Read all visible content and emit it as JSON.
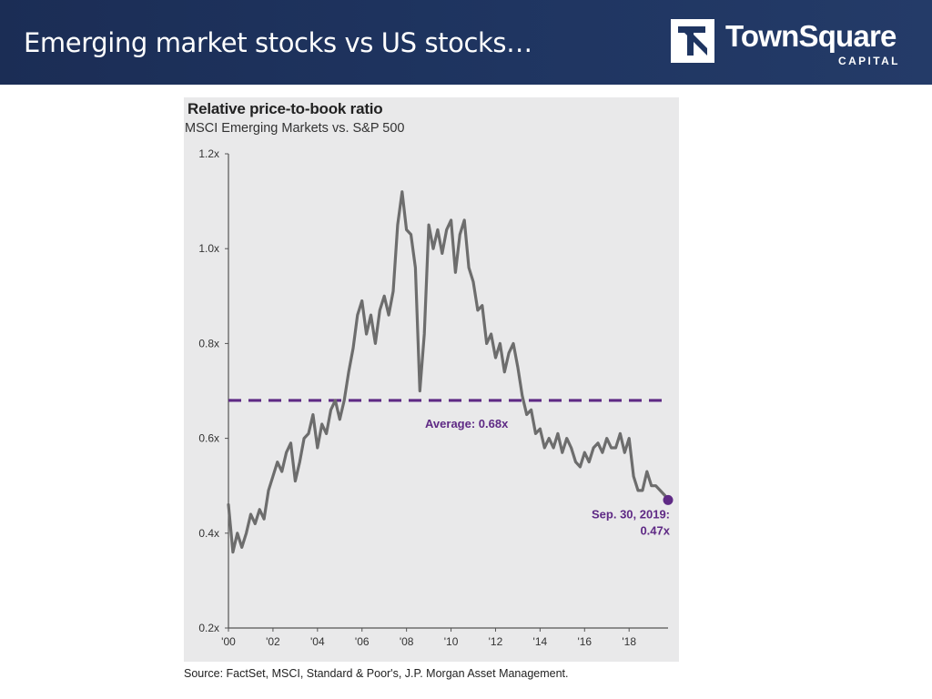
{
  "slide": {
    "title": "Emerging market stocks vs US stocks…",
    "logo_name": "TownSquare",
    "logo_sub": "CAPITAL"
  },
  "colors": {
    "header": "#1f3561",
    "panel_bg": "#e9e9ea",
    "line": "#6d6d6d",
    "accent": "#5f2a85"
  },
  "chart_data": {
    "type": "line",
    "title": "Relative price-to-book ratio",
    "subtitle": "MSCI Emerging Markets vs. S&P 500",
    "xlabel": "",
    "ylabel": "",
    "xlim": [
      2000,
      2019.75
    ],
    "ylim": [
      0.2,
      1.2
    ],
    "x_ticks": [
      2000,
      2002,
      2004,
      2006,
      2008,
      2010,
      2012,
      2014,
      2016,
      2018
    ],
    "x_tick_labels": [
      "'00",
      "'02",
      "'04",
      "'06",
      "'08",
      "'10",
      "'12",
      "'14",
      "'16",
      "'18"
    ],
    "y_ticks": [
      0.2,
      0.4,
      0.6,
      0.8,
      1.0,
      1.2
    ],
    "y_tick_labels": [
      "0.2x",
      "0.4x",
      "0.6x",
      "0.8x",
      "1.0x",
      "1.2x"
    ],
    "grid": false,
    "average": {
      "value": 0.68,
      "label": "Average: 0.68x"
    },
    "endpoint": {
      "x": 2019.75,
      "y": 0.47,
      "label_line1": "Sep. 30, 2019:",
      "label_line2": "0.47x"
    },
    "series": [
      {
        "x": [
          2000.0,
          2000.2,
          2000.4,
          2000.6,
          2000.8,
          2001.0,
          2001.2,
          2001.4,
          2001.6,
          2001.8,
          2002.0,
          2002.2,
          2002.4,
          2002.6,
          2002.8,
          2003.0,
          2003.2,
          2003.4,
          2003.6,
          2003.8,
          2004.0,
          2004.2,
          2004.4,
          2004.6,
          2004.8,
          2005.0,
          2005.2,
          2005.4,
          2005.6,
          2005.8,
          2006.0,
          2006.2,
          2006.4,
          2006.6,
          2006.8,
          2007.0,
          2007.2,
          2007.4,
          2007.6,
          2007.8,
          2008.0,
          2008.2,
          2008.4,
          2008.6,
          2008.8,
          2009.0,
          2009.2,
          2009.4,
          2009.6,
          2009.8,
          2010.0,
          2010.2,
          2010.4,
          2010.6,
          2010.8,
          2011.0,
          2011.2,
          2011.4,
          2011.6,
          2011.8,
          2012.0,
          2012.2,
          2012.4,
          2012.6,
          2012.8,
          2013.0,
          2013.2,
          2013.4,
          2013.6,
          2013.8,
          2014.0,
          2014.2,
          2014.4,
          2014.6,
          2014.8,
          2015.0,
          2015.2,
          2015.4,
          2015.6,
          2015.8,
          2016.0,
          2016.2,
          2016.4,
          2016.6,
          2016.8,
          2017.0,
          2017.2,
          2017.4,
          2017.6,
          2017.8,
          2018.0,
          2018.2,
          2018.4,
          2018.6,
          2018.8,
          2019.0,
          2019.2,
          2019.4,
          2019.6,
          2019.75
        ],
        "values": [
          0.46,
          0.36,
          0.4,
          0.37,
          0.4,
          0.44,
          0.42,
          0.45,
          0.43,
          0.49,
          0.52,
          0.55,
          0.53,
          0.57,
          0.59,
          0.51,
          0.55,
          0.6,
          0.61,
          0.65,
          0.58,
          0.63,
          0.61,
          0.66,
          0.68,
          0.64,
          0.68,
          0.74,
          0.79,
          0.86,
          0.89,
          0.82,
          0.86,
          0.8,
          0.87,
          0.9,
          0.86,
          0.91,
          1.05,
          1.12,
          1.04,
          1.03,
          0.96,
          0.7,
          0.82,
          1.05,
          1.0,
          1.04,
          0.99,
          1.04,
          1.06,
          0.95,
          1.03,
          1.06,
          0.96,
          0.93,
          0.87,
          0.88,
          0.8,
          0.82,
          0.77,
          0.8,
          0.74,
          0.78,
          0.8,
          0.75,
          0.69,
          0.65,
          0.66,
          0.61,
          0.62,
          0.58,
          0.6,
          0.58,
          0.61,
          0.57,
          0.6,
          0.58,
          0.55,
          0.54,
          0.57,
          0.55,
          0.58,
          0.59,
          0.57,
          0.6,
          0.58,
          0.58,
          0.61,
          0.57,
          0.6,
          0.52,
          0.49,
          0.49,
          0.53,
          0.5,
          0.5,
          0.49,
          0.48,
          0.47
        ]
      }
    ]
  },
  "source": "Source: FactSet, MSCI, Standard & Poor's, J.P. Morgan Asset Management."
}
